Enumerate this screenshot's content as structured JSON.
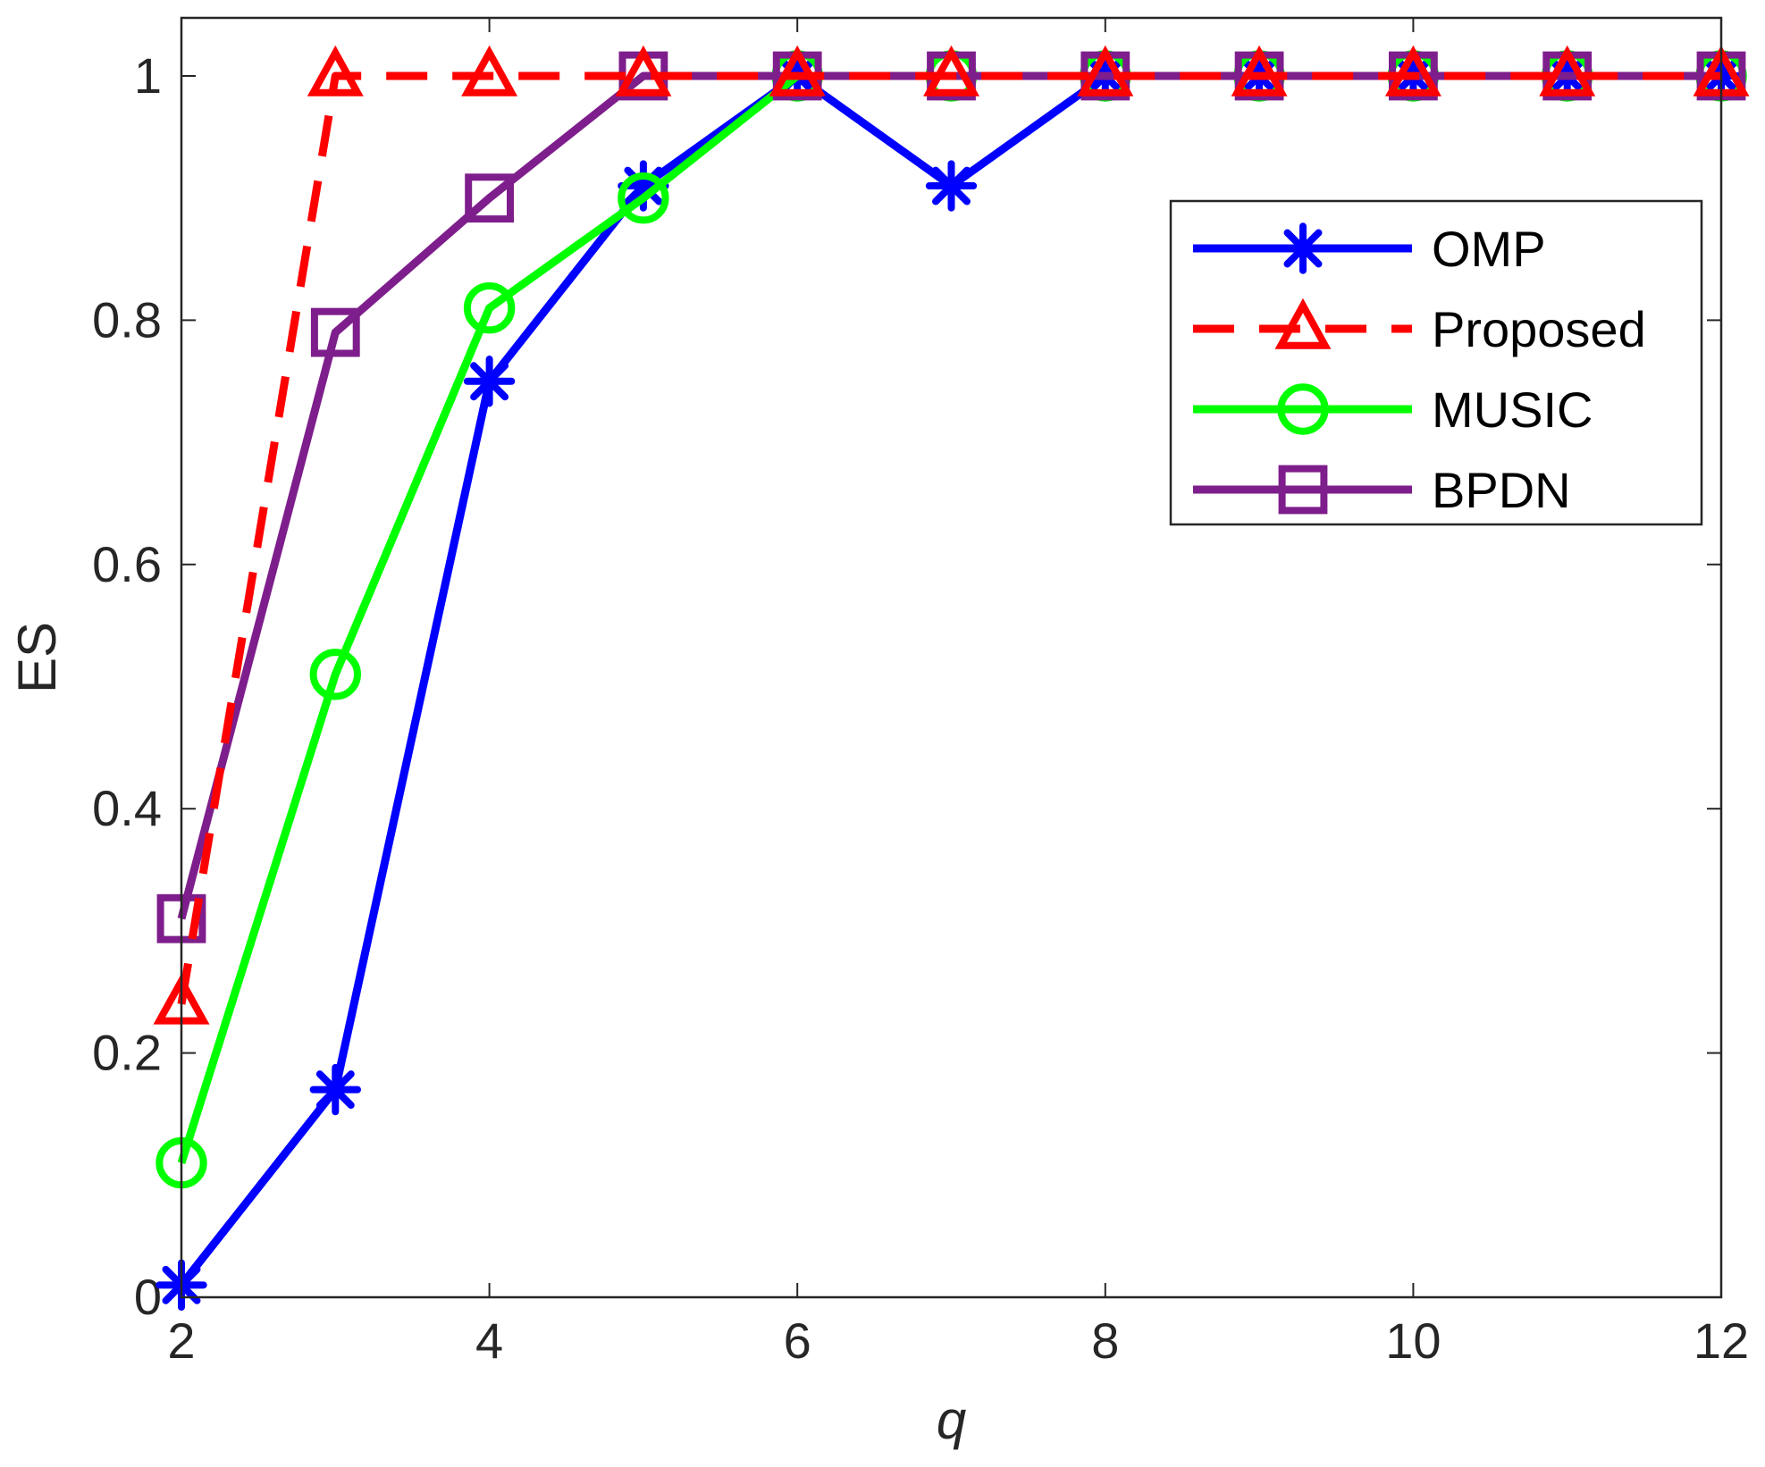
{
  "chart_data": {
    "type": "line",
    "title": "",
    "xlabel": "q",
    "ylabel": "ES",
    "xlim": [
      2,
      12
    ],
    "ylim": [
      0,
      1.05
    ],
    "x_ticks": [
      2,
      4,
      6,
      8,
      10,
      12
    ],
    "x_tick_labels": [
      "2",
      "4",
      "6",
      "8",
      "10",
      "12"
    ],
    "y_ticks": [
      0,
      0.2,
      0.4,
      0.6,
      0.8,
      1
    ],
    "y_tick_labels": [
      "0",
      "0.2",
      "0.4",
      "0.6",
      "0.8",
      "1"
    ],
    "grid": false,
    "legend_position": "top-right",
    "x": [
      2,
      3,
      4,
      5,
      6,
      7,
      8,
      9,
      10,
      11,
      12
    ],
    "series": [
      {
        "name": "OMP",
        "color": "#0000ff",
        "line": "solid",
        "marker": "asterisk",
        "values": [
          0.01,
          0.17,
          0.75,
          0.91,
          1,
          0.91,
          1,
          1,
          1,
          1,
          1
        ]
      },
      {
        "name": "Proposed",
        "color": "#ff0000",
        "line": "dashed",
        "marker": "triangle",
        "values": [
          0.24,
          1,
          1,
          1,
          1,
          1,
          1,
          1,
          1,
          1,
          1
        ]
      },
      {
        "name": "MUSIC",
        "color": "#00ff00",
        "line": "solid",
        "marker": "circle",
        "values": [
          0.11,
          0.51,
          0.81,
          0.9,
          1,
          1,
          1,
          1,
          1,
          1,
          1
        ]
      },
      {
        "name": "BPDN",
        "color": "#7e1e8c",
        "line": "solid",
        "marker": "square",
        "values": [
          0.31,
          0.79,
          0.9,
          1,
          1,
          1,
          1,
          1,
          1,
          1,
          1
        ]
      }
    ],
    "draw_order": [
      0,
      2,
      3,
      1
    ]
  }
}
